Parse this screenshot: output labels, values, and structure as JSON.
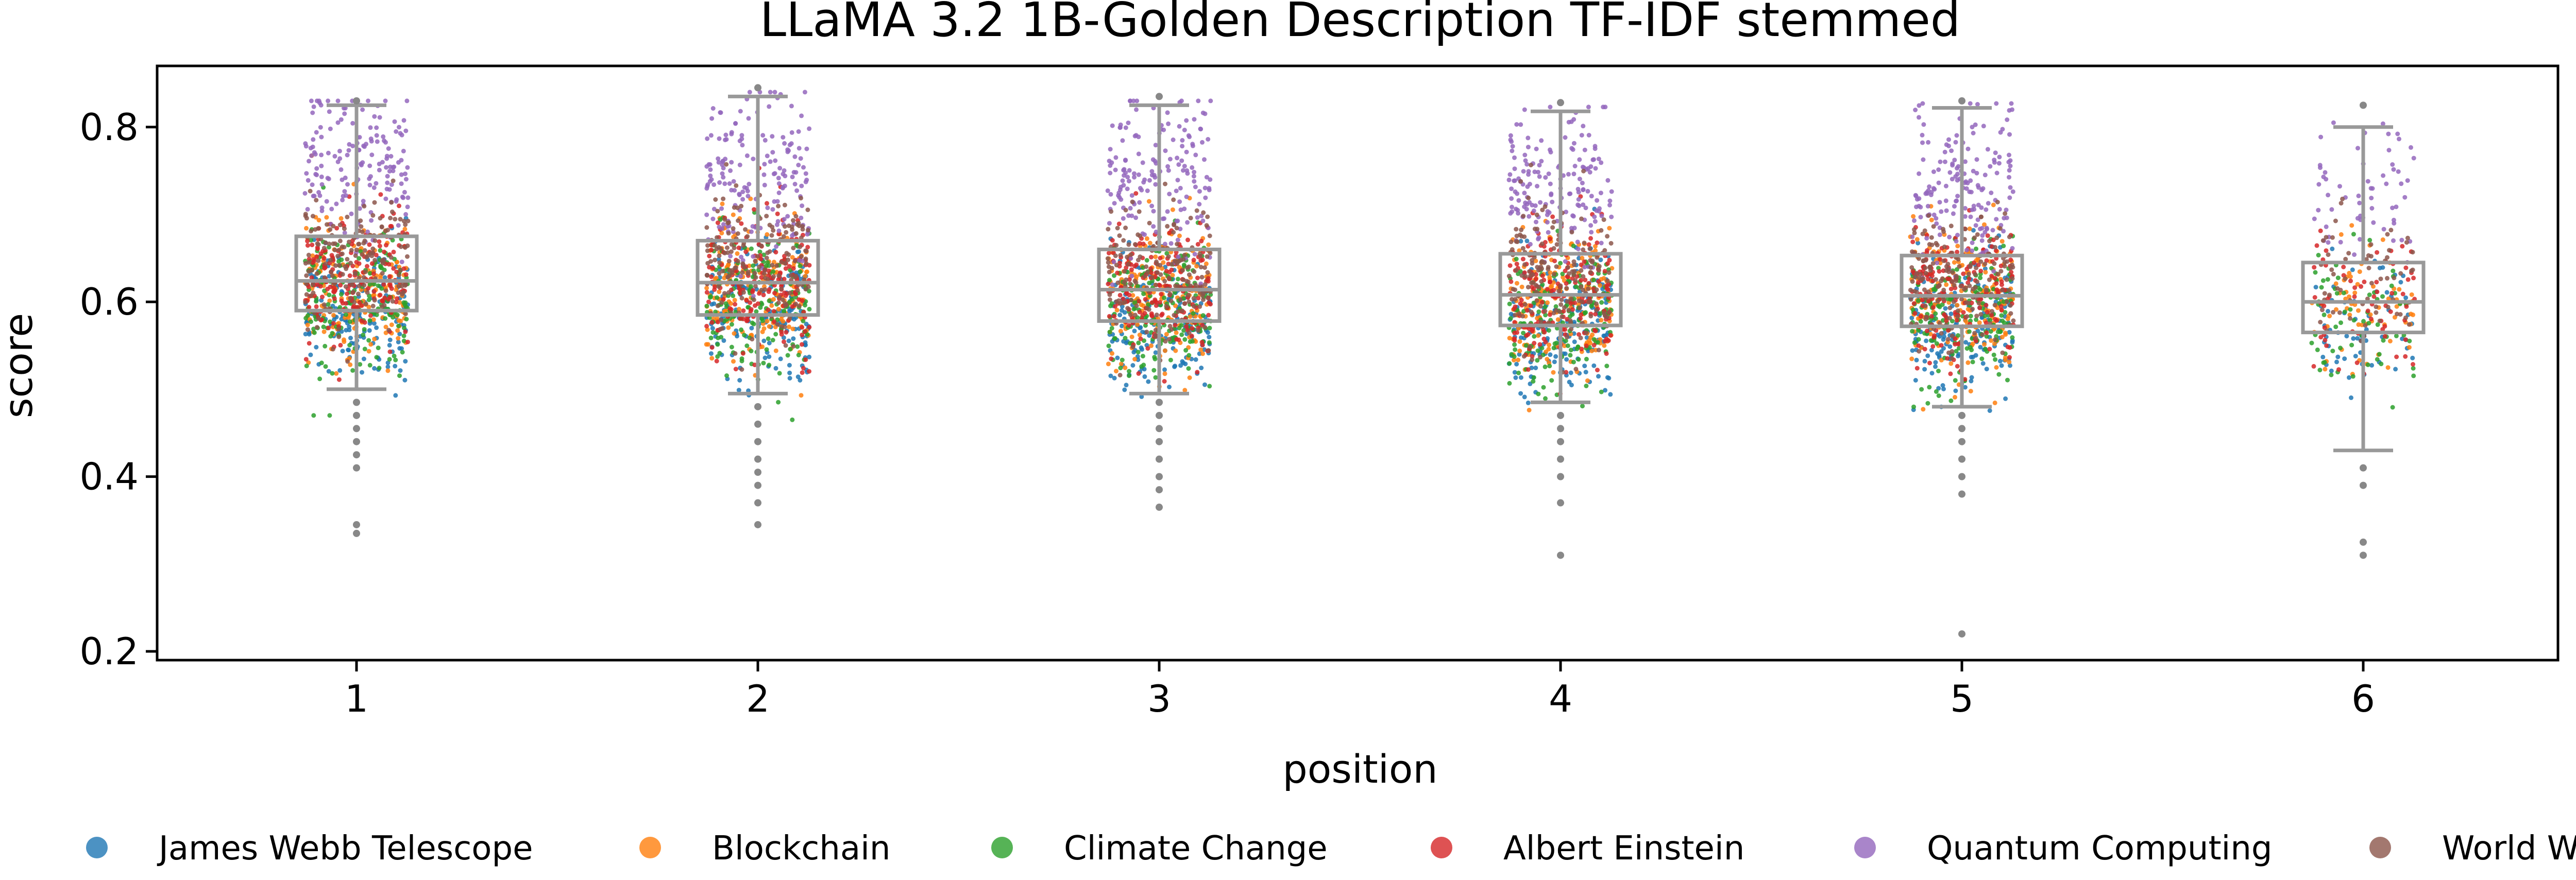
{
  "chart_data": {
    "type": "box",
    "title": "LLaMA 3.2 1B-Golden Description TF-IDF stemmed",
    "xlabel": "position",
    "ylabel": "score",
    "categories": [
      "1",
      "2",
      "3",
      "4",
      "5",
      "6"
    ],
    "ylim": [
      0.19,
      0.87
    ],
    "yticks": [
      "0.2",
      "0.4",
      "0.6",
      "0.8"
    ],
    "grid": false,
    "legend_position": "bottom",
    "box_color": "#999999",
    "boxes": [
      {
        "category": "1",
        "whisker_low": 0.5,
        "q1": 0.59,
        "median": 0.624,
        "q3": 0.675,
        "whisker_high": 0.825,
        "outliers": [
          0.335,
          0.345,
          0.41,
          0.425,
          0.44,
          0.455,
          0.47,
          0.485,
          0.83
        ]
      },
      {
        "category": "2",
        "whisker_low": 0.495,
        "q1": 0.585,
        "median": 0.622,
        "q3": 0.67,
        "whisker_high": 0.835,
        "outliers": [
          0.345,
          0.37,
          0.39,
          0.405,
          0.42,
          0.44,
          0.46,
          0.48,
          0.845
        ]
      },
      {
        "category": "3",
        "whisker_low": 0.495,
        "q1": 0.578,
        "median": 0.614,
        "q3": 0.66,
        "whisker_high": 0.825,
        "outliers": [
          0.365,
          0.385,
          0.4,
          0.42,
          0.44,
          0.455,
          0.47,
          0.485,
          0.835
        ]
      },
      {
        "category": "4",
        "whisker_low": 0.485,
        "q1": 0.573,
        "median": 0.608,
        "q3": 0.655,
        "whisker_high": 0.818,
        "outliers": [
          0.31,
          0.37,
          0.4,
          0.42,
          0.44,
          0.455,
          0.47,
          0.828
        ]
      },
      {
        "category": "5",
        "whisker_low": 0.48,
        "q1": 0.572,
        "median": 0.607,
        "q3": 0.653,
        "whisker_high": 0.822,
        "outliers": [
          0.22,
          0.38,
          0.4,
          0.42,
          0.44,
          0.455,
          0.47,
          0.83
        ]
      },
      {
        "category": "6",
        "whisker_low": 0.43,
        "q1": 0.565,
        "median": 0.6,
        "q3": 0.645,
        "whisker_high": 0.8,
        "outliers": [
          0.31,
          0.325,
          0.39,
          0.41,
          0.825
        ]
      }
    ],
    "series": [
      {
        "name": "James Webb Telescope",
        "color": "#1f77b4",
        "center_score": 0.59
      },
      {
        "name": "Blockchain",
        "color": "#ff7f0e",
        "center_score": 0.615
      },
      {
        "name": "Climate Change",
        "color": "#2ca02c",
        "center_score": 0.6
      },
      {
        "name": "Albert Einstein",
        "color": "#d62728",
        "center_score": 0.625
      },
      {
        "name": "Quantum Computing",
        "color": "#9467bd",
        "center_score": 0.75
      },
      {
        "name": "World War II",
        "color": "#8c564b",
        "center_score": 0.645
      }
    ]
  }
}
